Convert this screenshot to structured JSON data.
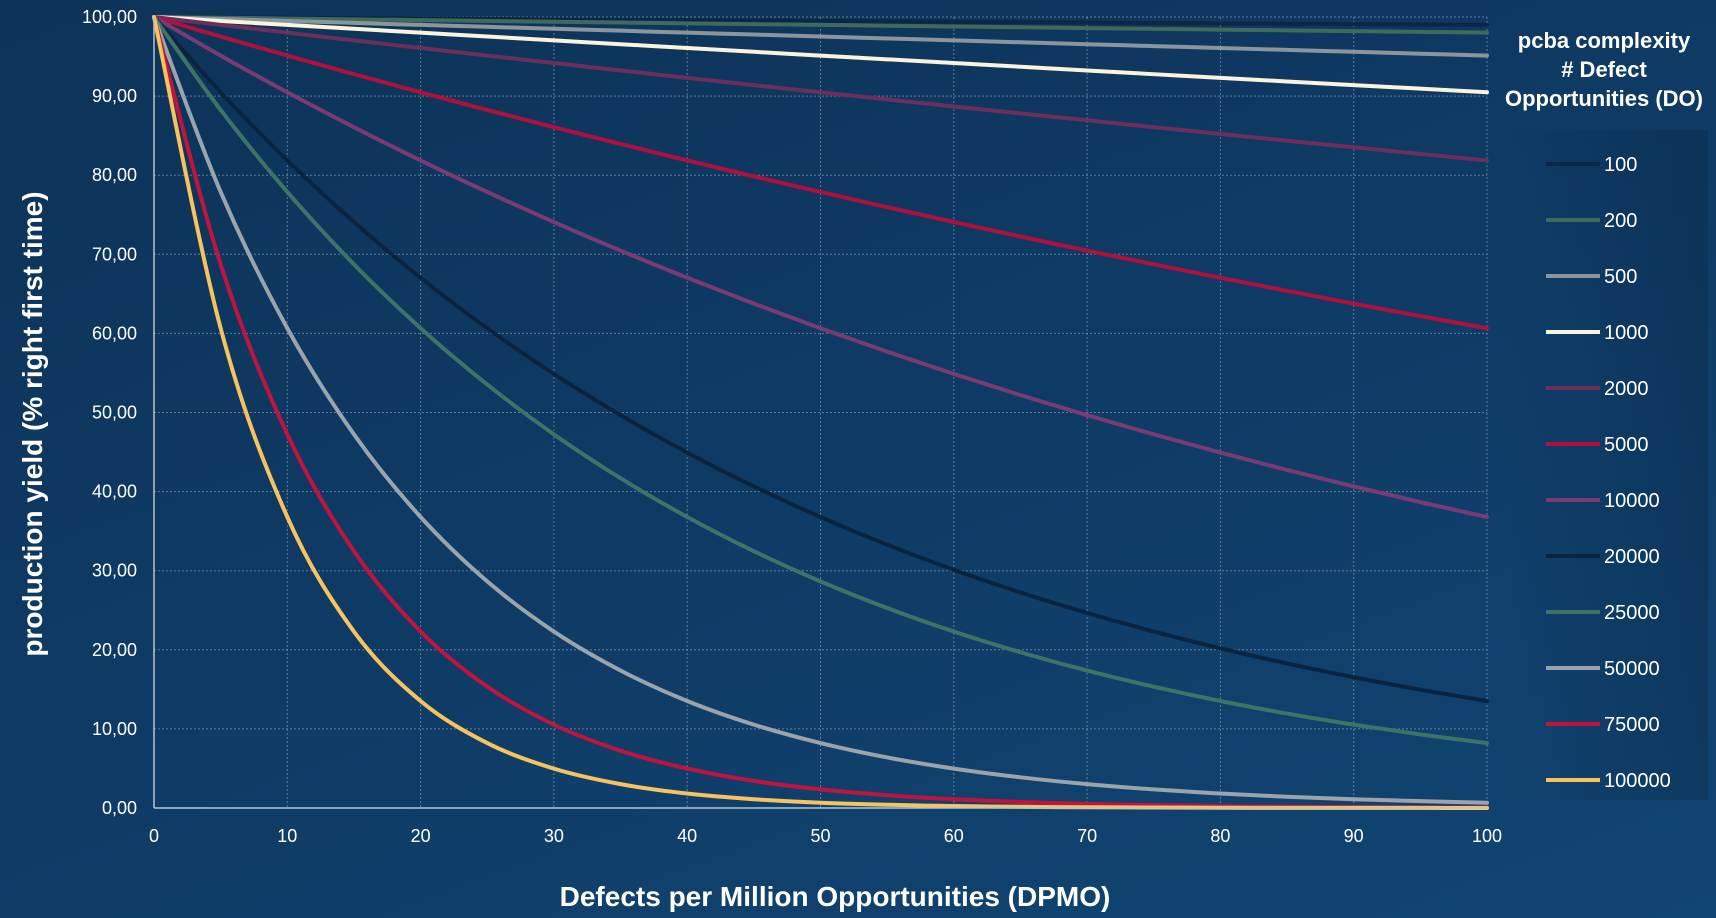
{
  "chart_data": {
    "type": "line",
    "xlabel": "Defects per Million Opportunities (DPMO)",
    "ylabel": "production yield (% right first time)",
    "xlim": [
      0,
      100
    ],
    "ylim": [
      0,
      100
    ],
    "x_ticks": [
      "0",
      "10",
      "20",
      "30",
      "40",
      "50",
      "60",
      "70",
      "80",
      "90",
      "100"
    ],
    "y_ticks": [
      "0,00",
      "10,00",
      "20,00",
      "30,00",
      "40,00",
      "50,00",
      "60,00",
      "70,00",
      "80,00",
      "90,00",
      "100,00"
    ],
    "grid": true,
    "legend_position": "right",
    "legend_title": [
      "pcba complexity",
      "# Defect",
      "Opportunities (DO)"
    ],
    "x": [
      0,
      5,
      10,
      15,
      20,
      25,
      30,
      35,
      40,
      45,
      50,
      55,
      60,
      65,
      70,
      75,
      80,
      85,
      90,
      95,
      100
    ],
    "series": [
      {
        "name": "100",
        "color": "#0b2747",
        "values": [
          100.0,
          99.95,
          99.9,
          99.85,
          99.8,
          99.75,
          99.7,
          99.65,
          99.6,
          99.55,
          99.5,
          99.45,
          99.4,
          99.35,
          99.3,
          99.25,
          99.2,
          99.15,
          99.1,
          99.05,
          99.0
        ]
      },
      {
        "name": "200",
        "color": "#3f6b5c",
        "values": [
          100.0,
          99.9,
          99.8,
          99.7,
          99.6,
          99.5,
          99.4,
          99.3,
          99.2,
          99.1,
          99.0,
          98.9,
          98.8,
          98.7,
          98.6,
          98.5,
          98.41,
          98.31,
          98.21,
          98.12,
          98.02
        ]
      },
      {
        "name": "500",
        "color": "#8d959c",
        "values": [
          100.0,
          99.75,
          99.5,
          99.25,
          99.0,
          98.76,
          98.51,
          98.27,
          98.02,
          97.78,
          97.53,
          97.29,
          97.04,
          96.8,
          96.56,
          96.32,
          96.08,
          95.84,
          95.6,
          95.36,
          95.12
        ]
      },
      {
        "name": "1000",
        "color": "#fbf3dc",
        "values": [
          100.0,
          99.5,
          99.0,
          98.51,
          98.02,
          97.53,
          97.04,
          96.56,
          96.08,
          95.6,
          95.12,
          94.65,
          94.18,
          93.71,
          93.24,
          92.77,
          92.31,
          91.85,
          91.39,
          90.94,
          90.48
        ]
      },
      {
        "name": "2000",
        "color": "#6b2f5a",
        "values": [
          100.0,
          99.0,
          98.02,
          97.04,
          96.08,
          95.12,
          94.18,
          93.24,
          92.31,
          91.39,
          90.48,
          89.58,
          88.69,
          87.81,
          86.94,
          86.07,
          85.21,
          84.36,
          83.53,
          82.69,
          81.87
        ]
      },
      {
        "name": "5000",
        "color": "#b0103d",
        "values": [
          100.0,
          97.53,
          95.12,
          92.77,
          90.48,
          88.25,
          86.07,
          83.95,
          81.87,
          79.85,
          77.88,
          75.96,
          74.08,
          72.25,
          70.47,
          68.73,
          67.03,
          65.38,
          63.76,
          62.19,
          60.65
        ]
      },
      {
        "name": "10000",
        "color": "#7a3a74",
        "values": [
          100.0,
          95.12,
          90.48,
          86.07,
          81.87,
          77.88,
          74.08,
          70.47,
          67.03,
          63.76,
          60.65,
          57.69,
          54.88,
          52.2,
          49.66,
          47.24,
          44.93,
          42.74,
          40.66,
          38.67,
          36.79
        ]
      },
      {
        "name": "20000",
        "color": "#0a2440",
        "values": [
          100.0,
          90.48,
          81.87,
          74.08,
          67.03,
          60.65,
          54.88,
          49.66,
          44.93,
          40.66,
          36.79,
          33.29,
          30.12,
          27.25,
          24.66,
          22.31,
          20.19,
          18.27,
          16.53,
          14.96,
          13.53
        ]
      },
      {
        "name": "25000",
        "color": "#3e7466",
        "values": [
          100.0,
          88.25,
          77.88,
          68.73,
          60.65,
          53.53,
          47.24,
          41.69,
          36.79,
          32.47,
          28.65,
          25.28,
          22.31,
          19.69,
          17.38,
          15.34,
          13.53,
          11.94,
          10.54,
          9.3,
          8.21
        ]
      },
      {
        "name": "50000",
        "color": "#9ba3ab",
        "values": [
          100.0,
          77.88,
          60.65,
          47.24,
          36.79,
          28.65,
          22.31,
          17.38,
          13.53,
          10.54,
          8.21,
          6.39,
          4.98,
          3.88,
          3.02,
          2.35,
          1.83,
          1.43,
          1.11,
          0.87,
          0.67
        ]
      },
      {
        "name": "75000",
        "color": "#c0143f",
        "values": [
          100.0,
          68.73,
          47.24,
          32.47,
          22.31,
          15.34,
          10.54,
          7.24,
          4.98,
          3.42,
          2.35,
          1.62,
          1.11,
          0.76,
          0.52,
          0.36,
          0.25,
          0.17,
          0.12,
          0.08,
          0.06
        ]
      },
      {
        "name": "100000",
        "color": "#f7c35f",
        "values": [
          100.0,
          60.65,
          36.79,
          22.31,
          13.53,
          8.21,
          4.98,
          3.02,
          1.83,
          1.11,
          0.67,
          0.41,
          0.25,
          0.15,
          0.09,
          0.06,
          0.03,
          0.02,
          0.01,
          0.01,
          0.0
        ]
      }
    ]
  }
}
